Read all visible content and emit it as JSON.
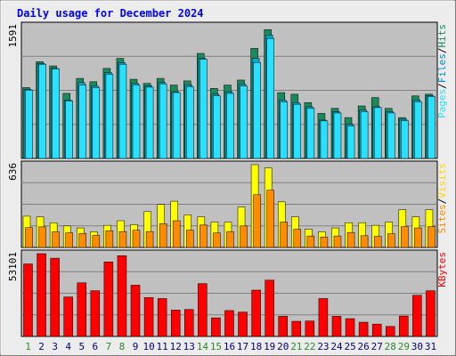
{
  "chart_data": {
    "type": "bar",
    "title": "Daily usage for December 2024",
    "categories": [
      "1",
      "2",
      "3",
      "4",
      "5",
      "6",
      "7",
      "8",
      "9",
      "10",
      "11",
      "12",
      "13",
      "14",
      "15",
      "16",
      "17",
      "18",
      "19",
      "20",
      "21",
      "22",
      "23",
      "24",
      "25",
      "26",
      "27",
      "28",
      "29",
      "30",
      "31"
    ],
    "weekend_days": [
      "1",
      "7",
      "8",
      "14",
      "15",
      "21",
      "22",
      "28",
      "29"
    ],
    "panels": [
      {
        "id": "requests",
        "ymax": 1591,
        "ymax_label": "1591",
        "right_label_parts": [
          "Pages",
          "/",
          "Files",
          "/",
          "Hits"
        ],
        "series": [
          {
            "name": "Hits",
            "color": "#1a8a5a",
            "values": [
              850,
              1160,
              1110,
              780,
              960,
              920,
              1080,
              1200,
              950,
              900,
              960,
              880,
              930,
              1260,
              840,
              880,
              940,
              1320,
              1545,
              790,
              770,
              670,
              540,
              600,
              490,
              630,
              730,
              600,
              490,
              750,
              770
            ]
          },
          {
            "name": "Files",
            "color": "#00aacc",
            "values": [
              830,
              1140,
              1080,
              700,
              910,
              870,
              1030,
              1150,
              900,
              870,
              910,
              800,
              880,
              1200,
              770,
              800,
              890,
              1200,
              1480,
              700,
              670,
              620,
              460,
              560,
              410,
              580,
              620,
              560,
              470,
              700,
              750
            ]
          },
          {
            "name": "Pages",
            "color": "#29e0ff",
            "values": [
              820,
              1130,
              1075,
              690,
              880,
              850,
              1010,
              1130,
              880,
              855,
              895,
              790,
              860,
              1190,
              750,
              780,
              870,
              1150,
              1440,
              680,
              650,
              600,
              450,
              545,
              390,
              560,
              610,
              545,
              455,
              680,
              745
            ]
          }
        ]
      },
      {
        "id": "visits",
        "ymax": 636,
        "ymax_label": "636",
        "right_label_parts": [
          "Sites",
          "/",
          "Visits"
        ],
        "series": [
          {
            "name": "Visits",
            "color": "#ffff00",
            "values": [
              240,
              235,
              190,
              165,
              150,
              120,
              170,
              205,
              175,
              275,
              330,
              355,
              250,
              235,
              195,
              195,
              310,
              636,
              610,
              350,
              235,
              140,
              120,
              150,
              190,
              190,
              170,
              195,
              290,
              235,
              290
            ]
          },
          {
            "name": "Sites",
            "color": "#ff8c00",
            "values": [
              152,
              158,
              120,
              112,
              108,
              92,
              128,
              122,
              132,
              122,
              182,
              205,
              133,
              172,
              111,
              122,
              165,
              405,
              440,
              195,
              140,
              88,
              80,
              88,
              115,
              90,
              85,
              105,
              160,
              150,
              160
            ]
          }
        ]
      },
      {
        "id": "kbytes",
        "ymax": 53101,
        "ymax_label": "53101",
        "right_label_parts": [
          "KBytes"
        ],
        "series": [
          {
            "name": "KBytes",
            "color": "#ff0000",
            "values": [
              46500,
              53100,
              50200,
              25300,
              34400,
              29300,
              47800,
              51800,
              32900,
              24900,
              24300,
              16900,
              17300,
              33900,
              11900,
              16600,
              15600,
              29700,
              36100,
              12900,
              9700,
              9900,
              24300,
              12900,
              11400,
              9100,
              7900,
              6400,
              13100,
              26400,
              29300
            ]
          }
        ]
      }
    ]
  }
}
